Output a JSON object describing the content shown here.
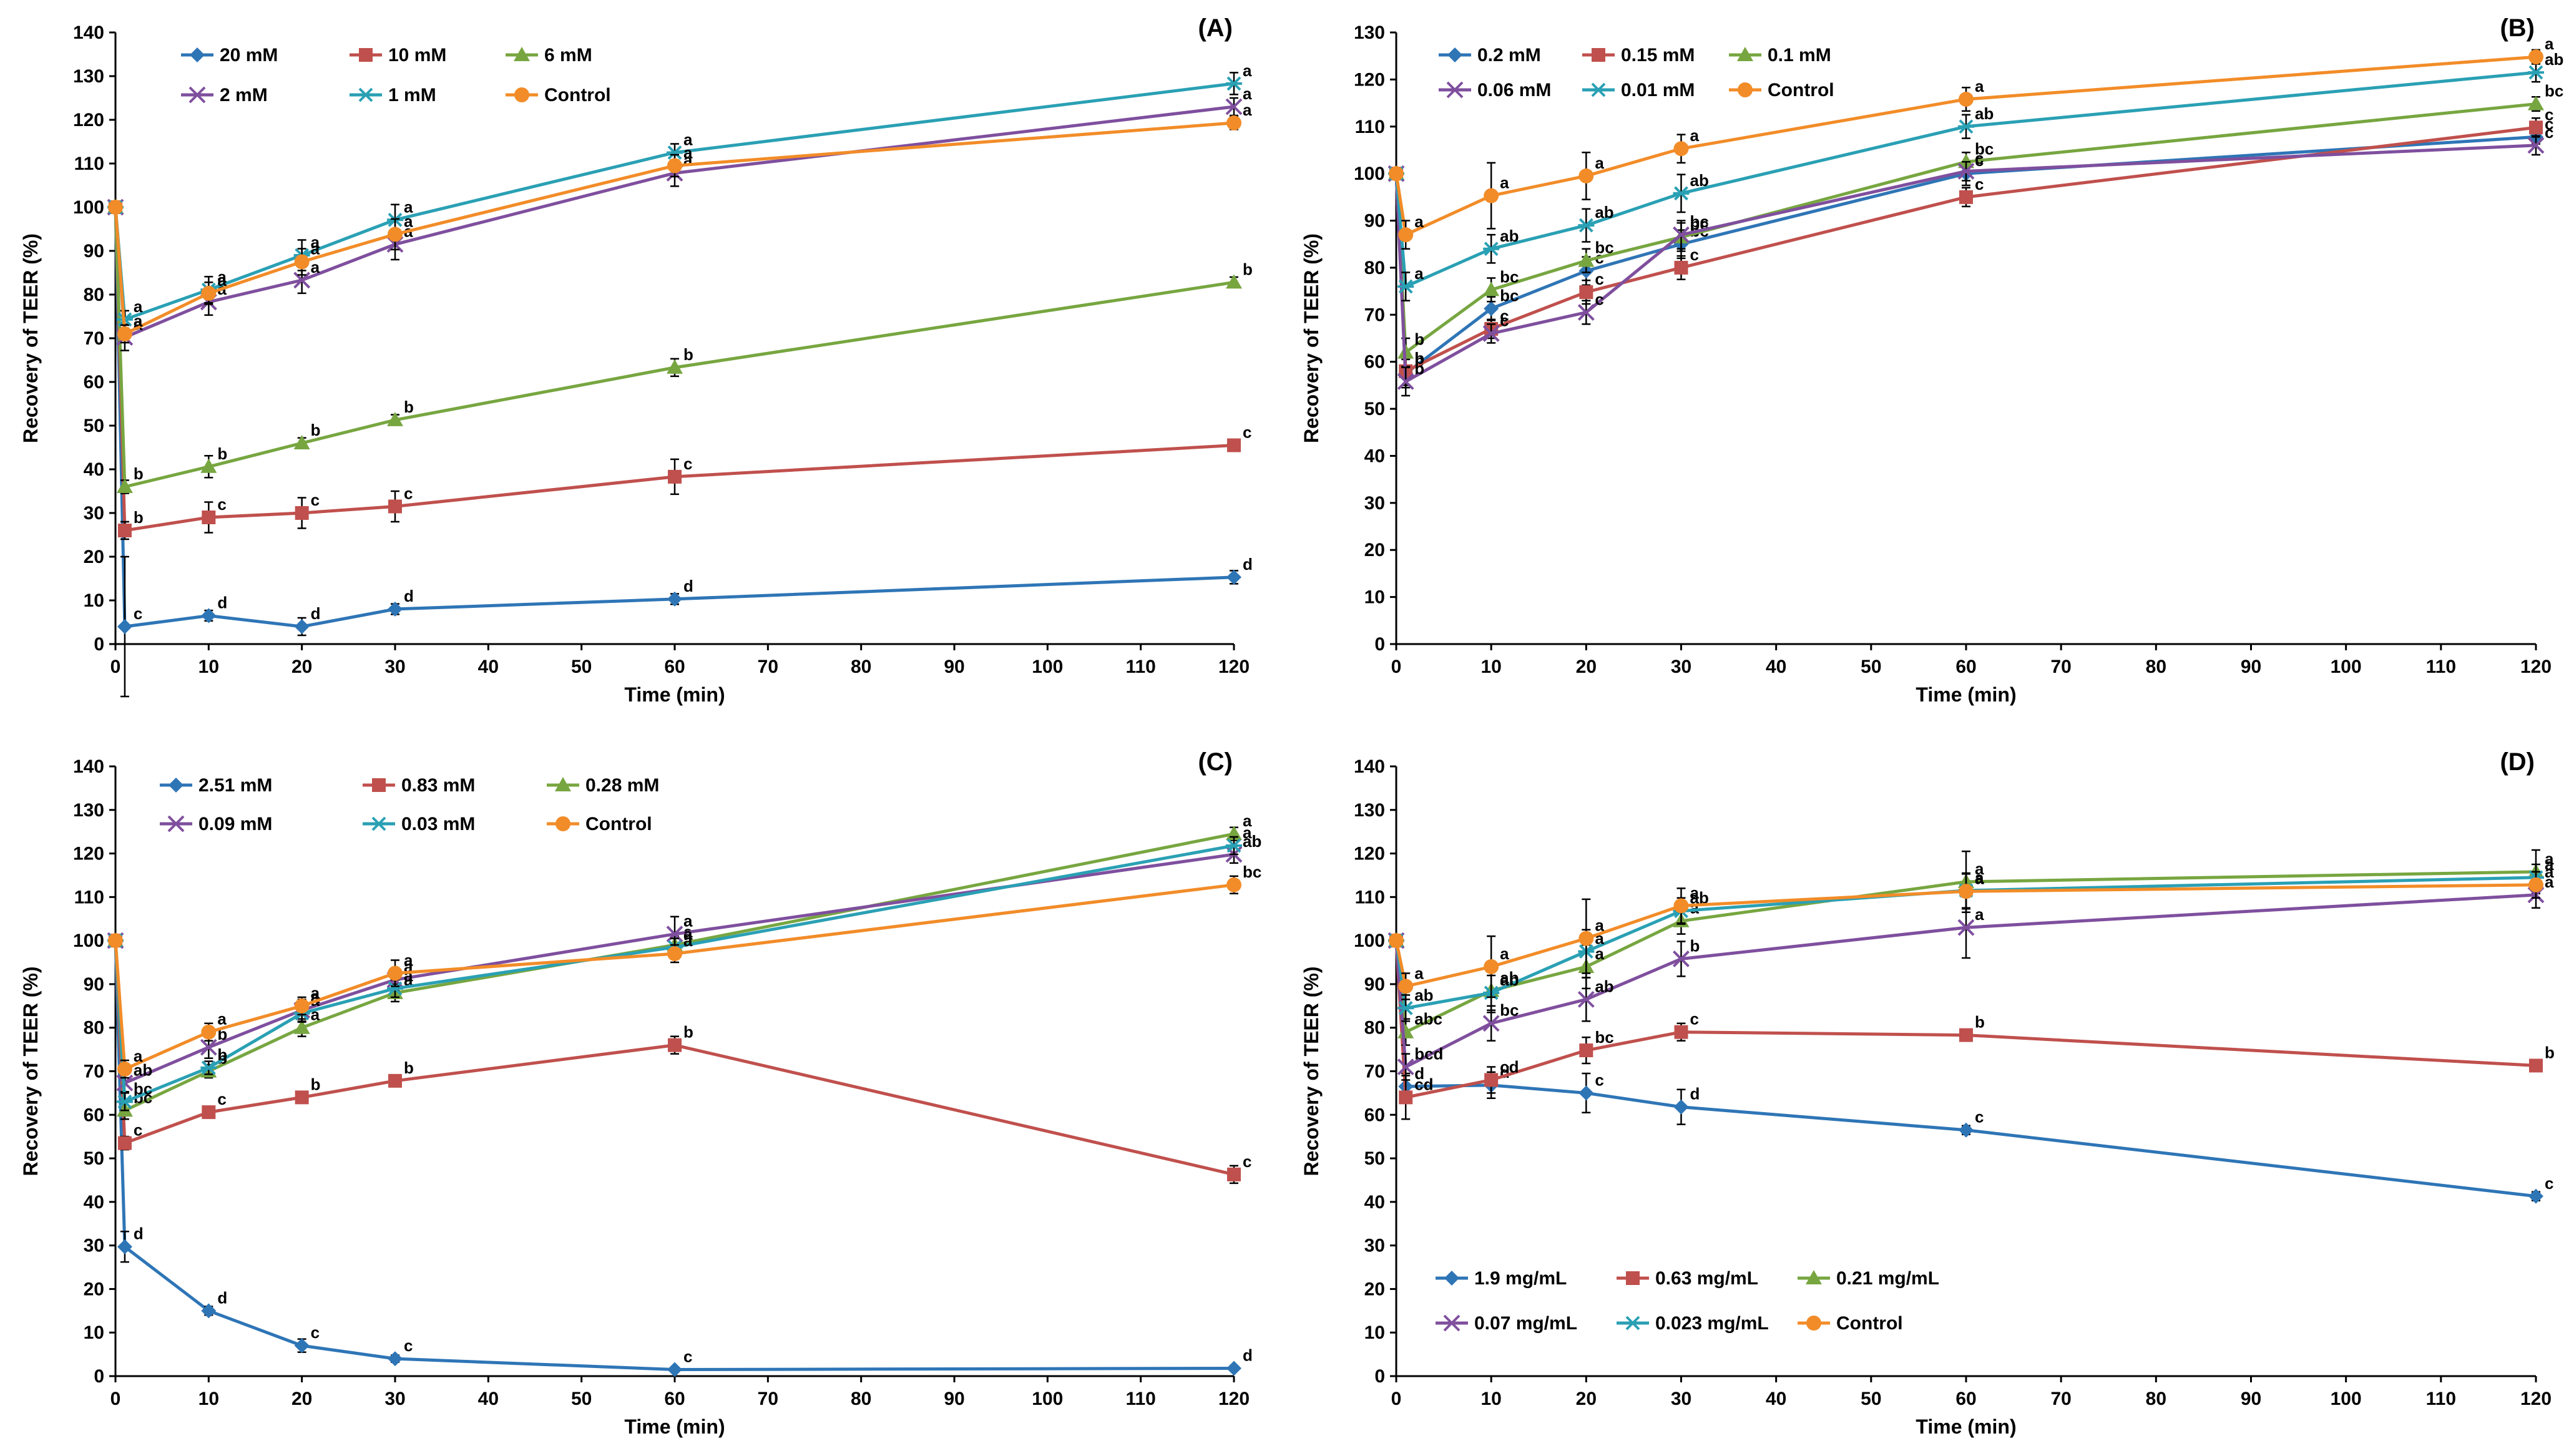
{
  "chart_data": [
    {
      "type": "line",
      "panel_label": "(A)",
      "xlabel": "Time (min)",
      "ylabel": "Recovery of TEER (%)",
      "xlim": [
        0,
        120
      ],
      "ylim": [
        0,
        140
      ],
      "xticks": [
        0,
        10,
        20,
        30,
        40,
        50,
        60,
        70,
        80,
        90,
        100,
        110,
        120
      ],
      "yticks": [
        0,
        10,
        20,
        30,
        40,
        50,
        60,
        70,
        80,
        90,
        100,
        110,
        120,
        130,
        140
      ],
      "x": [
        0,
        1,
        10,
        20,
        30,
        60,
        120
      ],
      "series": [
        {
          "name": "20 mM",
          "color": "#2E75B6",
          "marker": "diamond",
          "values": [
            100,
            4,
            6.5,
            4,
            8,
            10.3,
            15.3
          ],
          "errors": [
            0,
            16,
            1.2,
            2,
            1.2,
            1.2,
            1.5
          ],
          "letters": [
            "",
            "c",
            "d",
            "d",
            "d",
            "d",
            "d"
          ]
        },
        {
          "name": "10 mM",
          "color": "#C0504D",
          "marker": "square",
          "values": [
            100,
            26,
            29,
            30,
            31.5,
            38.3,
            45.5
          ],
          "errors": [
            0,
            2,
            3.5,
            3.5,
            3.5,
            4,
            1.2
          ],
          "letters": [
            "",
            "b",
            "c",
            "c",
            "c",
            "c",
            "c"
          ]
        },
        {
          "name": "6 mM",
          "color": "#77A640",
          "marker": "triangle",
          "values": [
            100,
            36,
            40.6,
            46,
            51.3,
            63.3,
            82.8
          ],
          "errors": [
            0,
            1.5,
            2.5,
            1.2,
            1.2,
            2,
            1.2
          ],
          "letters": [
            "",
            "b",
            "b",
            "b",
            "b",
            "b",
            "b"
          ]
        },
        {
          "name": "2 mM",
          "color": "#7F4F9E",
          "marker": "x",
          "values": [
            100,
            70.2,
            78.3,
            83.3,
            91.5,
            107.8,
            123
          ],
          "errors": [
            0,
            3,
            3,
            3,
            3.5,
            3,
            2
          ],
          "letters": [
            "",
            "a",
            "a",
            "a",
            "a",
            "a",
            "a"
          ]
        },
        {
          "name": "1 mM",
          "color": "#2AA0B4",
          "marker": "star",
          "values": [
            100,
            74.3,
            81.1,
            89,
            97.1,
            112.5,
            128.3
          ],
          "errors": [
            0,
            2,
            3,
            3.5,
            3.5,
            2,
            2.5
          ],
          "letters": [
            "",
            "a",
            "a",
            "a",
            "a",
            "a",
            "a"
          ]
        },
        {
          "name": "Control",
          "color": "#F28C28",
          "marker": "circle",
          "values": [
            100,
            71,
            80.3,
            87.5,
            93.8,
            109.5,
            119.3
          ],
          "errors": [
            0,
            2,
            2.5,
            3,
            3.5,
            2.5,
            1.5
          ],
          "letters": [
            "",
            "a",
            "a",
            "a",
            "a",
            "a",
            "a"
          ]
        }
      ]
    },
    {
      "type": "line",
      "panel_label": "(B)",
      "xlabel": "Time (min)",
      "ylabel": "Recovery of TEER (%)",
      "xlim": [
        0,
        120
      ],
      "ylim": [
        0,
        130
      ],
      "xticks": [
        0,
        10,
        20,
        30,
        40,
        50,
        60,
        70,
        80,
        90,
        100,
        110,
        120
      ],
      "yticks": [
        0,
        10,
        20,
        30,
        40,
        50,
        60,
        70,
        80,
        90,
        100,
        110,
        120,
        130
      ],
      "x": [
        0,
        1,
        10,
        20,
        30,
        60,
        120
      ],
      "series": [
        {
          "name": "0.2 mM",
          "color": "#2E75B6",
          "marker": "diamond",
          "values": [
            100,
            57.5,
            71.3,
            79.3,
            85,
            100,
            107.8
          ],
          "errors": [
            0,
            3,
            2.5,
            3,
            3,
            2.5,
            1.5
          ],
          "letters": [
            "",
            "b",
            "bc",
            "c",
            "bc",
            "c",
            "c"
          ]
        },
        {
          "name": "0.15 mM",
          "color": "#C0504D",
          "marker": "square",
          "values": [
            100,
            58,
            67,
            74.8,
            80,
            95,
            109.8
          ],
          "errors": [
            0,
            3,
            2,
            2.5,
            2.5,
            2,
            2
          ],
          "letters": [
            "",
            "b",
            "c",
            "c",
            "c",
            "c",
            "c"
          ]
        },
        {
          "name": "0.1 mM",
          "color": "#77A640",
          "marker": "triangle",
          "values": [
            100,
            62,
            75.3,
            81.5,
            86.5,
            102.5,
            114.8
          ],
          "errors": [
            0,
            3,
            2.5,
            2.5,
            3,
            2,
            1.5
          ],
          "letters": [
            "",
            "b",
            "bc",
            "bc",
            "bc",
            "bc",
            "bc"
          ]
        },
        {
          "name": "0.06 mM",
          "color": "#7F4F9E",
          "marker": "x",
          "values": [
            100,
            55.8,
            66,
            70.5,
            87,
            100.5,
            106
          ],
          "errors": [
            0,
            3,
            2,
            2.5,
            3,
            2,
            2
          ],
          "letters": [
            "",
            "b",
            "c",
            "c",
            "bc",
            "c",
            "c"
          ]
        },
        {
          "name": "0.01 mM",
          "color": "#2AA0B4",
          "marker": "star",
          "values": [
            100,
            76,
            84,
            89,
            95.8,
            110,
            121.5
          ],
          "errors": [
            0,
            3,
            3,
            3.5,
            4,
            2.5,
            2
          ],
          "letters": [
            "",
            "a",
            "ab",
            "ab",
            "ab",
            "ab",
            "ab"
          ]
        },
        {
          "name": "Control",
          "color": "#F28C28",
          "marker": "circle",
          "values": [
            100,
            87,
            95.3,
            99.5,
            105.3,
            115.8,
            124.8
          ],
          "errors": [
            0,
            3,
            7,
            5,
            3,
            2.5,
            1.5
          ],
          "letters": [
            "",
            "a",
            "a",
            "a",
            "a",
            "a",
            "a"
          ]
        }
      ]
    },
    {
      "type": "line",
      "panel_label": "(C)",
      "xlabel": "Time (min)",
      "ylabel": "Recovery of TEER (%)",
      "xlim": [
        0,
        120
      ],
      "ylim": [
        0,
        140
      ],
      "xticks": [
        0,
        10,
        20,
        30,
        40,
        50,
        60,
        70,
        80,
        90,
        100,
        110,
        120
      ],
      "yticks": [
        0,
        10,
        20,
        30,
        40,
        50,
        60,
        70,
        80,
        90,
        100,
        110,
        120,
        130,
        140
      ],
      "x": [
        0,
        1,
        10,
        20,
        30,
        60,
        120
      ],
      "series": [
        {
          "name": "2.51 mM",
          "color": "#2E75B6",
          "marker": "diamond",
          "values": [
            100,
            29.7,
            15,
            7,
            4,
            1.5,
            1.8
          ],
          "errors": [
            0,
            3.5,
            1,
            1.5,
            0.8,
            0.5,
            0.5
          ],
          "letters": [
            "",
            "d",
            "d",
            "c",
            "c",
            "c",
            "d"
          ]
        },
        {
          "name": "0.83 mM",
          "color": "#C0504D",
          "marker": "square",
          "values": [
            100,
            53.5,
            60.6,
            64,
            67.8,
            76,
            46.3
          ],
          "errors": [
            0,
            1.5,
            1,
            1,
            1,
            2,
            2
          ],
          "letters": [
            "",
            "c",
            "c",
            "b",
            "b",
            "b",
            "c"
          ]
        },
        {
          "name": "0.28 mM",
          "color": "#77A640",
          "marker": "triangle",
          "values": [
            100,
            61,
            70,
            80,
            88,
            99,
            124.5
          ],
          "errors": [
            0,
            2,
            1.5,
            2,
            2,
            2,
            1.5
          ],
          "letters": [
            "",
            "bc",
            "b",
            "a",
            "a",
            "a",
            "a"
          ]
        },
        {
          "name": "0.09 mM",
          "color": "#7F4F9E",
          "marker": "x",
          "values": [
            100,
            67.3,
            75.5,
            84,
            91,
            101.5,
            119.8
          ],
          "errors": [
            0,
            2,
            2.5,
            2.5,
            2.5,
            4,
            2
          ],
          "letters": [
            "",
            "ab",
            "b",
            "a",
            "a",
            "a",
            "ab"
          ]
        },
        {
          "name": "0.03 mM",
          "color": "#2AA0B4",
          "marker": "star",
          "values": [
            100,
            63,
            70.8,
            83.3,
            89,
            98.5,
            121.8
          ],
          "errors": [
            0,
            2,
            1.5,
            2,
            2,
            2,
            2
          ],
          "letters": [
            "",
            "bc",
            "b",
            "a",
            "a",
            "a",
            "a"
          ]
        },
        {
          "name": "Control",
          "color": "#F28C28",
          "marker": "circle",
          "values": [
            100,
            70.5,
            79,
            85,
            92.5,
            97,
            112.8
          ],
          "errors": [
            0,
            2,
            2,
            2,
            3,
            2,
            2
          ],
          "letters": [
            "",
            "a",
            "a",
            "a",
            "a",
            "a",
            "bc"
          ]
        }
      ]
    },
    {
      "type": "line",
      "panel_label": "(D)",
      "xlabel": "Time (min)",
      "ylabel": "Recovery of TEER (%)",
      "xlim": [
        0,
        120
      ],
      "ylim": [
        0,
        140
      ],
      "xticks": [
        0,
        10,
        20,
        30,
        40,
        50,
        60,
        70,
        80,
        90,
        100,
        110,
        120
      ],
      "yticks": [
        0,
        10,
        20,
        30,
        40,
        50,
        60,
        70,
        80,
        90,
        100,
        110,
        120,
        130,
        140
      ],
      "x": [
        0,
        1,
        10,
        20,
        30,
        60,
        120
      ],
      "series": [
        {
          "name": "1.9 mg/mL",
          "color": "#2E75B6",
          "marker": "diamond",
          "values": [
            100,
            66.5,
            66.8,
            65,
            61.8,
            56.5,
            41.3
          ],
          "errors": [
            0,
            3,
            3,
            4.5,
            4,
            1,
            1
          ],
          "letters": [
            "",
            "d",
            "d",
            "c",
            "d",
            "c",
            "c"
          ]
        },
        {
          "name": "0.63 mg/mL",
          "color": "#C0504D",
          "marker": "square",
          "values": [
            100,
            64,
            68,
            74.8,
            79,
            78.3,
            71.3
          ],
          "errors": [
            0,
            5,
            3,
            3,
            2,
            1,
            1
          ],
          "letters": [
            "",
            "cd",
            "cd",
            "bc",
            "c",
            "b",
            "b"
          ]
        },
        {
          "name": "0.21 mg/mL",
          "color": "#77A640",
          "marker": "triangle",
          "values": [
            100,
            79,
            88.5,
            94,
            104.5,
            113.5,
            115.8
          ],
          "errors": [
            0,
            3,
            5,
            5,
            3,
            7,
            5
          ],
          "letters": [
            "",
            "abc",
            "ab",
            "a",
            "a",
            "a",
            "a"
          ]
        },
        {
          "name": "0.07 mg/mL",
          "color": "#7F4F9E",
          "marker": "x",
          "values": [
            100,
            71,
            81,
            86.5,
            95.8,
            103,
            110.5
          ],
          "errors": [
            0,
            3,
            4,
            5,
            4,
            7,
            3
          ],
          "letters": [
            "",
            "bcd",
            "bc",
            "ab",
            "b",
            "a",
            "a"
          ]
        },
        {
          "name": "0.023 mg/mL",
          "color": "#2AA0B4",
          "marker": "star",
          "values": [
            100,
            84.5,
            88,
            97.5,
            106.8,
            111.5,
            114.5
          ],
          "errors": [
            0,
            3,
            4,
            5,
            3,
            4,
            3
          ],
          "letters": [
            "",
            "ab",
            "ab",
            "a",
            "ab",
            "a",
            "a"
          ]
        },
        {
          "name": "Control",
          "color": "#F28C28",
          "marker": "circle",
          "values": [
            100,
            89.5,
            94,
            100.5,
            108,
            111.3,
            112.8
          ],
          "errors": [
            0,
            3,
            7,
            9,
            4,
            4,
            3
          ],
          "letters": [
            "",
            "a",
            "a",
            "a",
            "a",
            "a",
            "a"
          ]
        }
      ]
    }
  ]
}
